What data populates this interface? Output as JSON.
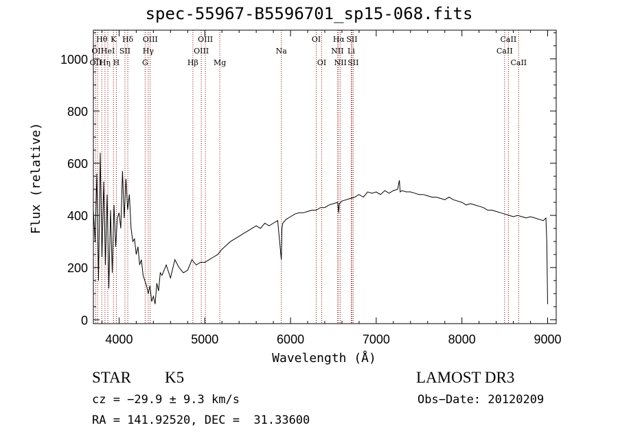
{
  "title": "spec-55967-B5596701_sp15-068.fits",
  "info": {
    "object_class": "STAR",
    "subclass": "K5",
    "survey": "LAMOST DR3",
    "cz": "cz = −29.9 ± 9.3 km/s",
    "obs_date": "Obs−Date: 20120209",
    "radec": "RA = 141.92520, DEC =  31.33600"
  },
  "colors": {
    "line_marker": "#8b0000",
    "spectrum": "#000000",
    "axes": "#000000"
  },
  "chart_data": {
    "type": "line",
    "title": "spec-55967-B5596701_sp15-068.fits",
    "xlabel": "Wavelength (Å)",
    "ylabel": "Flux (relative)",
    "xlim": [
      3700,
      9100
    ],
    "ylim": [
      -15,
      1110
    ],
    "xticks": [
      4000,
      5000,
      6000,
      7000,
      8000,
      9000
    ],
    "yticks": [
      0,
      200,
      400,
      600,
      800,
      1000
    ],
    "grid": false,
    "series": [
      {
        "name": "spectrum",
        "x": [
          3700,
          3720,
          3740,
          3760,
          3780,
          3800,
          3820,
          3840,
          3860,
          3880,
          3900,
          3920,
          3940,
          3960,
          3980,
          4000,
          4020,
          4040,
          4060,
          4080,
          4100,
          4120,
          4140,
          4160,
          4180,
          4200,
          4220,
          4240,
          4260,
          4280,
          4300,
          4320,
          4340,
          4360,
          4380,
          4400,
          4420,
          4440,
          4460,
          4480,
          4500,
          4550,
          4600,
          4650,
          4700,
          4750,
          4800,
          4850,
          4900,
          4950,
          5000,
          5050,
          5100,
          5150,
          5200,
          5250,
          5300,
          5350,
          5400,
          5450,
          5500,
          5550,
          5600,
          5650,
          5700,
          5750,
          5800,
          5850,
          5893,
          5900,
          5910,
          5950,
          6000,
          6050,
          6100,
          6150,
          6200,
          6250,
          6300,
          6350,
          6400,
          6450,
          6500,
          6550,
          6563,
          6570,
          6600,
          6650,
          6700,
          6750,
          6800,
          6850,
          6900,
          6950,
          7000,
          7050,
          7100,
          7150,
          7200,
          7250,
          7270,
          7280,
          7300,
          7350,
          7400,
          7450,
          7500,
          7550,
          7600,
          7650,
          7700,
          7750,
          7800,
          7850,
          7900,
          7950,
          8000,
          8050,
          8100,
          8150,
          8200,
          8250,
          8300,
          8350,
          8400,
          8450,
          8500,
          8550,
          8600,
          8650,
          8700,
          8750,
          8800,
          8850,
          8900,
          8950,
          8980,
          8990,
          9000
        ],
        "y": [
          420,
          300,
          560,
          150,
          640,
          240,
          530,
          210,
          480,
          120,
          420,
          180,
          440,
          280,
          390,
          410,
          350,
          570,
          390,
          540,
          420,
          480,
          350,
          300,
          310,
          250,
          280,
          210,
          230,
          170,
          150,
          130,
          100,
          130,
          70,
          90,
          60,
          140,
          110,
          180,
          170,
          210,
          160,
          230,
          200,
          180,
          190,
          230,
          210,
          220,
          220,
          230,
          240,
          250,
          270,
          285,
          300,
          310,
          320,
          330,
          340,
          350,
          360,
          350,
          370,
          360,
          370,
          380,
          230,
          350,
          370,
          385,
          395,
          405,
          410,
          410,
          415,
          420,
          420,
          430,
          430,
          440,
          445,
          450,
          410,
          445,
          455,
          460,
          465,
          470,
          480,
          470,
          490,
          485,
          490,
          480,
          495,
          485,
          495,
          500,
          535,
          490,
          495,
          490,
          490,
          485,
          480,
          480,
          475,
          470,
          470,
          465,
          460,
          470,
          460,
          455,
          450,
          440,
          445,
          440,
          435,
          430,
          420,
          420,
          415,
          410,
          405,
          400,
          395,
          400,
          395,
          390,
          395,
          390,
          385,
          380,
          390,
          300,
          60
        ]
      }
    ],
    "line_markers": [
      {
        "wavelength": 3727,
        "label": "OII",
        "row": 3
      },
      {
        "wavelength": 3750,
        "label": "OII",
        "row": 2
      },
      {
        "wavelength": 3798,
        "label": "Hθ",
        "row": 1
      },
      {
        "wavelength": 3835,
        "label": "Hη",
        "row": 3
      },
      {
        "wavelength": 3869,
        "label": "HeI",
        "row": 2
      },
      {
        "wavelength": 3934,
        "label": "K",
        "row": 1
      },
      {
        "wavelength": 3968,
        "label": "H",
        "row": 3
      },
      {
        "wavelength": 4068,
        "label": "SII",
        "row": 2
      },
      {
        "wavelength": 4101,
        "label": "Hδ",
        "row": 1
      },
      {
        "wavelength": 4304,
        "label": "G",
        "row": 3
      },
      {
        "wavelength": 4340,
        "label": "Hγ",
        "row": 2
      },
      {
        "wavelength": 4363,
        "label": "OIII",
        "row": 1
      },
      {
        "wavelength": 4861,
        "label": "Hβ",
        "row": 3
      },
      {
        "wavelength": 4959,
        "label": "OIII",
        "row": 2
      },
      {
        "wavelength": 5007,
        "label": "OIII",
        "row": 1
      },
      {
        "wavelength": 5175,
        "label": "Mg",
        "row": 3
      },
      {
        "wavelength": 5893,
        "label": "Na",
        "row": 2
      },
      {
        "wavelength": 6300,
        "label": "OI",
        "row": 1
      },
      {
        "wavelength": 6364,
        "label": "OI",
        "row": 3
      },
      {
        "wavelength": 6548,
        "label": "NII",
        "row": 2
      },
      {
        "wavelength": 6563,
        "label": "Hα",
        "row": 1
      },
      {
        "wavelength": 6583,
        "label": "NII",
        "row": 3
      },
      {
        "wavelength": 6708,
        "label": "Li",
        "row": 2
      },
      {
        "wavelength": 6716,
        "label": "SII",
        "row": 1
      },
      {
        "wavelength": 6731,
        "label": "SII",
        "row": 3
      },
      {
        "wavelength": 8498,
        "label": "CaII",
        "row": 2
      },
      {
        "wavelength": 8542,
        "label": "CaII",
        "row": 1
      },
      {
        "wavelength": 8662,
        "label": "CaII",
        "row": 3
      }
    ]
  }
}
